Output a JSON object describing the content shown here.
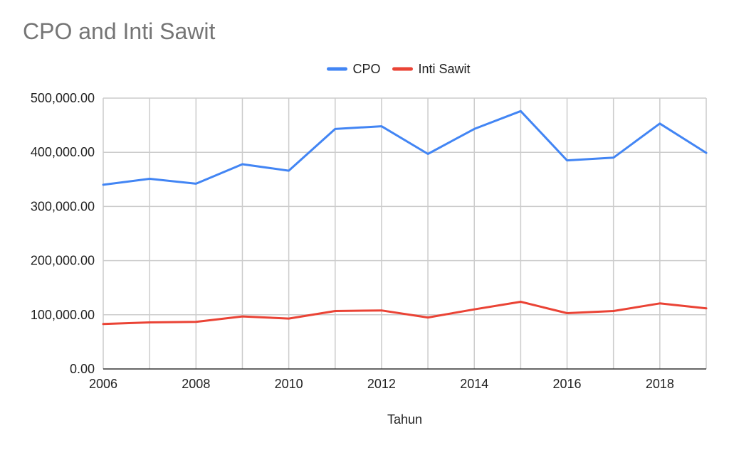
{
  "chart_data": {
    "type": "line",
    "title": "CPO and Inti Sawit",
    "xlabel": "Tahun",
    "ylabel": "",
    "x": [
      2006,
      2007,
      2008,
      2009,
      2010,
      2011,
      2012,
      2013,
      2014,
      2015,
      2016,
      2017,
      2018,
      2019
    ],
    "x_ticks": [
      "2006",
      "2008",
      "2010",
      "2012",
      "2014",
      "2016",
      "2018"
    ],
    "y_ticks": [
      "0.00",
      "100,000.00",
      "200,000.00",
      "300,000.00",
      "400,000.00",
      "500,000.00"
    ],
    "xlim": [
      2006,
      2019
    ],
    "ylim": [
      0,
      500000
    ],
    "grid": true,
    "legend": "top-center",
    "series": [
      {
        "name": "CPO",
        "color": "#4285f4",
        "values": [
          340000,
          351000,
          342000,
          378000,
          366000,
          443000,
          448000,
          397000,
          443000,
          476000,
          385000,
          390000,
          453000,
          399000
        ]
      },
      {
        "name": "Inti Sawit",
        "color": "#ea4335",
        "values": [
          83000,
          86000,
          87000,
          97000,
          93000,
          107000,
          108000,
          95000,
          110000,
          124000,
          103000,
          107000,
          121000,
          112000
        ]
      }
    ]
  }
}
